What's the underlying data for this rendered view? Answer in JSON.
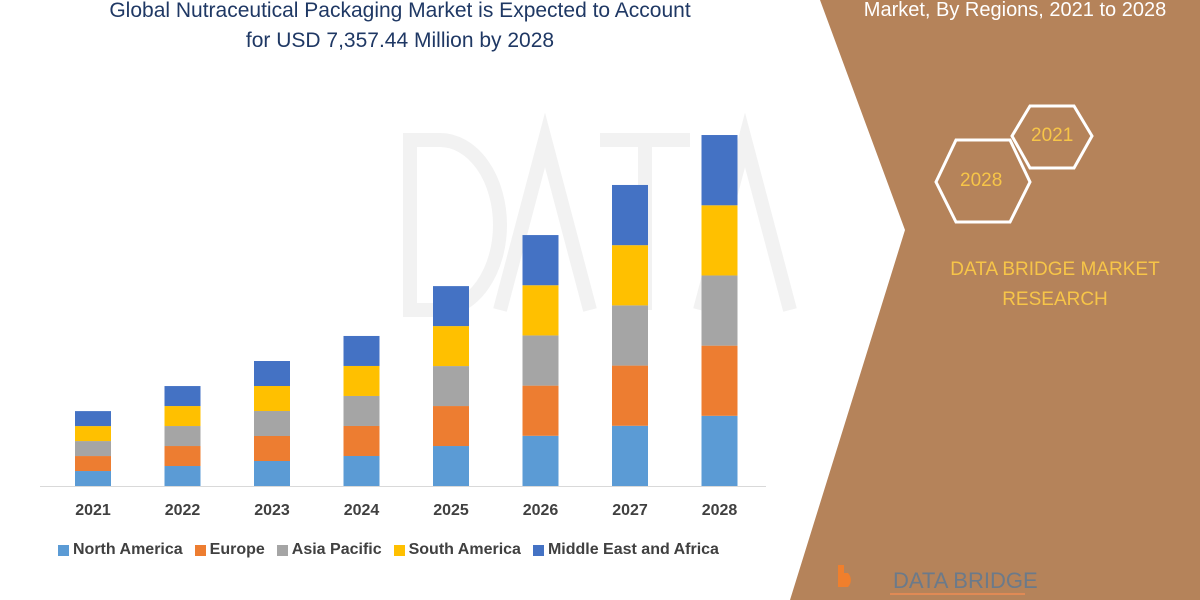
{
  "title_line1": "Global Nutraceutical Packaging Market is Expected to Account",
  "title_line2": "for USD 7,357.44 Million by 2028",
  "right_title": "Market, By Regions, 2021 to 2028",
  "hex_labels": [
    "2021",
    "2028"
  ],
  "brand_line1": "DATA BRIDGE MARKET",
  "brand_line2": "RESEARCH",
  "logo_text": "DATA BRIDGE",
  "colors": {
    "panel": "#b5835a",
    "accent": "#f7c548"
  },
  "chart_data": {
    "type": "bar",
    "stacked": true,
    "categories": [
      "2021",
      "2022",
      "2023",
      "2024",
      "2025",
      "2026",
      "2027",
      "2028"
    ],
    "series": [
      {
        "name": "North America",
        "color": "#5b9bd5",
        "values": [
          314,
          419,
          524,
          629,
          838,
          1052,
          1262,
          1471
        ]
      },
      {
        "name": "Europe",
        "color": "#ed7d31",
        "values": [
          314,
          419,
          524,
          629,
          838,
          1052,
          1262,
          1471
        ]
      },
      {
        "name": "Asia Pacific",
        "color": "#a5a5a5",
        "values": [
          314,
          419,
          524,
          629,
          838,
          1052,
          1262,
          1471
        ]
      },
      {
        "name": "South America",
        "color": "#ffc000",
        "values": [
          314,
          419,
          524,
          629,
          838,
          1052,
          1262,
          1471
        ]
      },
      {
        "name": "Middle East and Africa",
        "color": "#4472c4",
        "values": [
          314,
          419,
          524,
          629,
          838,
          1052,
          1262,
          1473
        ]
      }
    ],
    "ylabel": "",
    "xlabel": "",
    "grid": false,
    "legend": "bottom"
  }
}
